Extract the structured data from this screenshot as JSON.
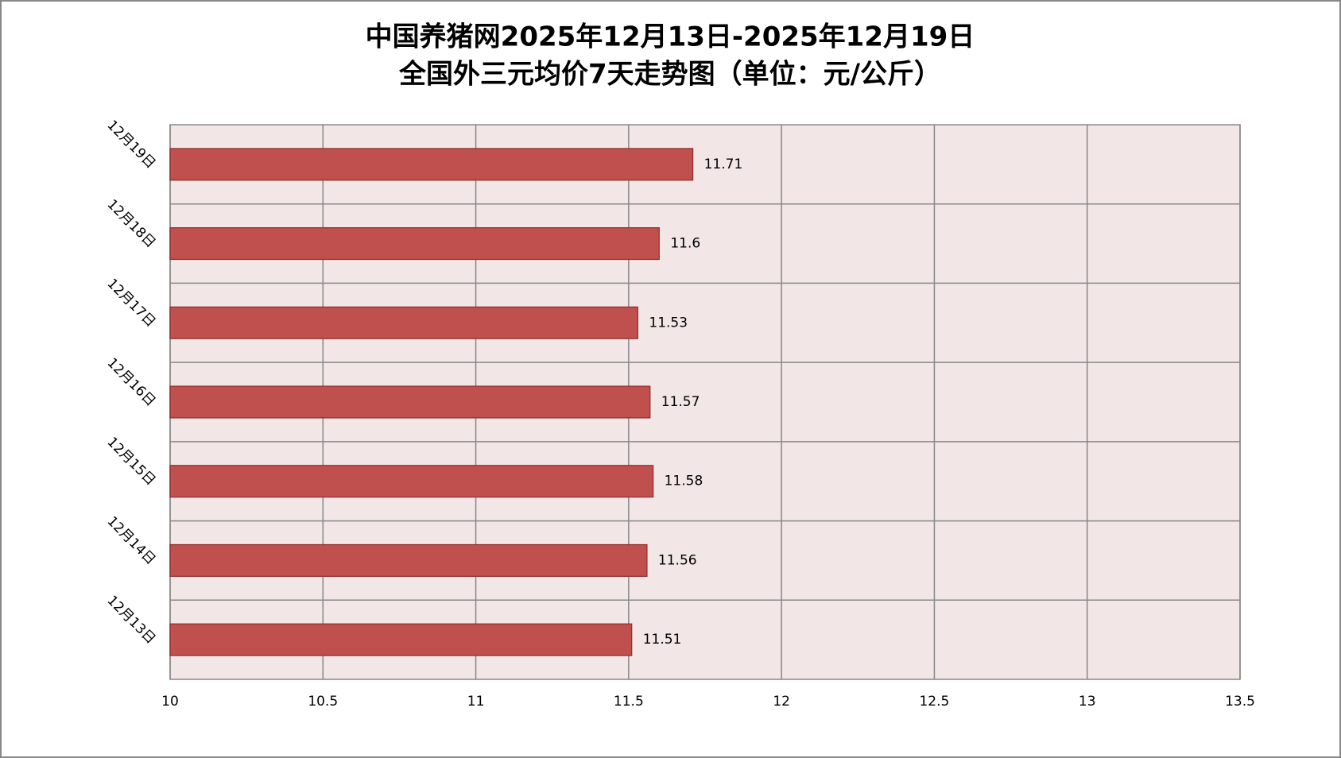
{
  "chart_data": {
    "type": "bar",
    "orientation": "horizontal",
    "title": "中国养猪网2025年12月13日-2025年12月19日",
    "subtitle": "全国外三元均价7天走势图（单位：元/公斤）",
    "categories": [
      "12月13日",
      "12月14日",
      "12月15日",
      "12月16日",
      "12月17日",
      "12月18日",
      "12月19日"
    ],
    "values": [
      11.51,
      11.56,
      11.58,
      11.57,
      11.53,
      11.6,
      11.71
    ],
    "color": "#c0504d",
    "xlim": [
      10,
      13.5
    ],
    "xticks": [
      10,
      10.5,
      11,
      11.5,
      12,
      12.5,
      13,
      13.5
    ],
    "grid": true
  }
}
